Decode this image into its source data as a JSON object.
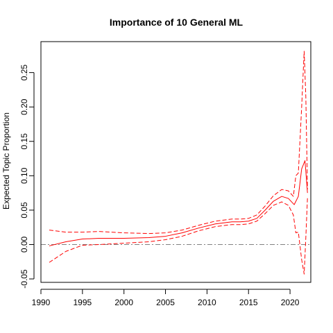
{
  "chart_data": {
    "type": "line",
    "title": "Importance of 10 General ML",
    "xlabel": "",
    "ylabel": "Expected Topic Proportion",
    "xlim": [
      1990,
      2022.5
    ],
    "ylim": [
      -0.055,
      0.295
    ],
    "x_ticks": [
      "1990",
      "1995",
      "2000",
      "2005",
      "2010",
      "2015",
      "2020"
    ],
    "y_ticks": [
      "-0.05",
      "0.00",
      "0.05",
      "0.10",
      "0.15",
      "0.20",
      "0.25"
    ],
    "grid": false,
    "reference_line": {
      "y": 0,
      "color": "#808080",
      "style": "dash-dot"
    },
    "colors": {
      "series": "#ff0000",
      "reference": "#808080",
      "axis": "#000000"
    },
    "series": [
      {
        "role": "estimate",
        "style": "solid",
        "x": [
          1991,
          1993,
          1995,
          1997,
          2000,
          2003,
          2005,
          2007,
          2009,
          2011,
          2013,
          2014,
          2015,
          2016,
          2017,
          2018,
          2019,
          2019.8,
          2020.5,
          2021,
          2021.4,
          2021.8,
          2022.1
        ],
        "y": [
          -0.002,
          0.004,
          0.008,
          0.009,
          0.009,
          0.01,
          0.012,
          0.017,
          0.024,
          0.03,
          0.033,
          0.033,
          0.034,
          0.038,
          0.05,
          0.063,
          0.07,
          0.067,
          0.058,
          0.07,
          0.11,
          0.122,
          0.075
        ]
      },
      {
        "role": "upper-bound",
        "style": "dashed",
        "x": [
          1991,
          1993,
          1995,
          1997,
          2000,
          2003,
          2005,
          2007,
          2009,
          2011,
          2013,
          2014,
          2015,
          2016,
          2017,
          2018,
          2019,
          2019.8,
          2020.4,
          2020.7,
          2021,
          2021.4,
          2021.7,
          2021.9,
          2022.1
        ],
        "y": [
          0.021,
          0.018,
          0.018,
          0.019,
          0.017,
          0.016,
          0.017,
          0.021,
          0.028,
          0.034,
          0.037,
          0.037,
          0.038,
          0.043,
          0.056,
          0.071,
          0.08,
          0.078,
          0.07,
          0.1,
          0.104,
          0.2,
          0.281,
          0.215,
          0.08
        ]
      },
      {
        "role": "lower-bound",
        "style": "dashed",
        "x": [
          1991,
          1993,
          1995,
          1997,
          2000,
          2003,
          2005,
          2007,
          2009,
          2011,
          2013,
          2014,
          2015,
          2016,
          2017,
          2018,
          2019,
          2019.8,
          2020.4,
          2020.7,
          2021,
          2021.4,
          2021.7,
          2021.9,
          2022.1
        ],
        "y": [
          -0.026,
          -0.01,
          -0.001,
          0.0,
          0.002,
          0.004,
          0.007,
          0.012,
          0.02,
          0.026,
          0.029,
          0.029,
          0.03,
          0.034,
          0.045,
          0.057,
          0.062,
          0.057,
          0.043,
          0.017,
          0.018,
          -0.022,
          -0.043,
          0.01,
          0.068
        ]
      }
    ]
  }
}
